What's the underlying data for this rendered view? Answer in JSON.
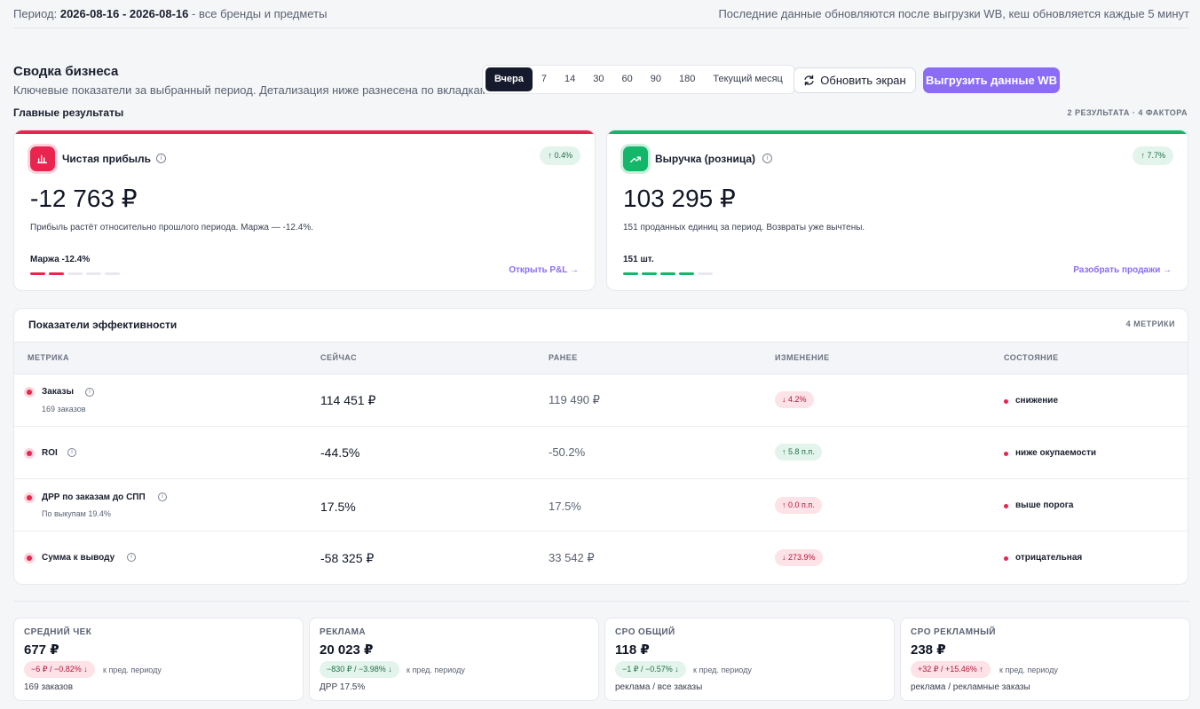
{
  "topbar": {
    "period_label": "Период:",
    "period_value": "2026-08-16 - 2026-08-16",
    "period_scope": "- все бренды и предметы",
    "update_note": "Последние данные обновляются после выгрузки WB, кеш обновляется каждые 5 минут"
  },
  "header": {
    "title": "Сводка бизнеса",
    "subtitle": "Ключевые показатели за выбранный период. Детализация ниже разнесена по вкладкам."
  },
  "periods": [
    "Вчера",
    "7",
    "14",
    "30",
    "60",
    "90",
    "180",
    "Текущий месяц"
  ],
  "actions": {
    "refresh": "Обновить экран",
    "export": "Выгрузить данные WB"
  },
  "main_results": {
    "title": "Главные результаты",
    "count": "2 РЕЗУЛЬТАТА · 4 ФАКТОРА"
  },
  "kpis": [
    {
      "title": "Чистая прибыль",
      "badge": "↑ 0.4%",
      "value": "-12 763 ₽",
      "desc": "Прибыль растёт относительно прошлого периода. Маржа — -12.4%.",
      "foot": "Маржа -12.4%",
      "link": "Открыть P&L →",
      "accent": "#e8244f",
      "segments_filled": 2
    },
    {
      "title": "Выручка (розница)",
      "badge": "↑ 7.7%",
      "value": "103 295 ₽",
      "desc": "151 проданных единиц за период. Возвраты уже вычтены.",
      "foot": "151 шт.",
      "link": "Разобрать продажи →",
      "accent": "#12b76a",
      "segments_filled": 4
    }
  ],
  "efficiency": {
    "title": "Показатели эффективности",
    "count": "4 МЕТРИКИ",
    "headers": [
      "МЕТРИКА",
      "СЕЙЧАС",
      "РАНЕЕ",
      "ИЗМЕНЕНИЕ",
      "СОСТОЯНИЕ"
    ],
    "rows": [
      {
        "name": "Заказы",
        "sub": "169 заказов",
        "now": "114 451 ₽",
        "prev": "119 490 ₽",
        "change": "↓ 4.2%",
        "state": "снижение"
      },
      {
        "name": "ROI",
        "sub": "",
        "now": "-44.5%",
        "prev": "-50.2%",
        "change": "↑ 5.8 п.п.",
        "state": "ниже окупаемости"
      },
      {
        "name": "ДРР по заказам до СПП",
        "sub": "По выкупам 19.4%",
        "now": "17.5%",
        "prev": "17.5%",
        "change": "↑ 0.0 п.п.",
        "state": "выше порога"
      },
      {
        "name": "Сумма к выводу",
        "sub": "",
        "now": "-58 325 ₽",
        "prev": "33 542 ₽",
        "change": "↓ 273.9%",
        "state": "отрицательная"
      }
    ]
  },
  "mini_cards": [
    {
      "label": "СРЕДНИЙ ЧЕК",
      "value": "677 ₽",
      "badge": "−6 ₽ / −0.82% ↓",
      "period": "к пред. периоду",
      "foot": "169 заказов"
    },
    {
      "label": "РЕКЛАМА",
      "value": "20 023 ₽",
      "badge": "−830 ₽ / −3.98% ↓",
      "period": "к пред. периоду",
      "foot": "ДРР 17.5%"
    },
    {
      "label": "CPO ОБЩИЙ",
      "value": "118 ₽",
      "badge": "−1 ₽ / −0.57% ↓",
      "period": "к пред. периоду",
      "foot": "реклама / все заказы"
    },
    {
      "label": "CPO РЕКЛАМНЫЙ",
      "value": "238 ₽",
      "badge": "+32 ₽ / +15.46% ↑",
      "period": "к пред. периоду",
      "foot": "реклама / рекламные заказы"
    }
  ]
}
